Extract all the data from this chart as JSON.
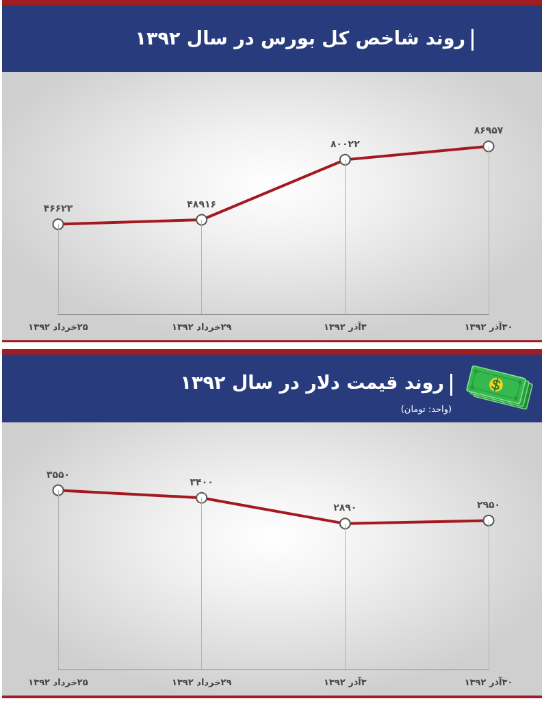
{
  "chart_data": [
    {
      "type": "line",
      "title": "روند شاخص کل بورس در سال ۱۳۹۲",
      "categories": [
        "۲۵خرداد ۱۳۹۲",
        "۲۹خرداد ۱۳۹۲",
        "۳آذر ۱۳۹۲",
        "۳۰آذر ۱۳۹۲"
      ],
      "values": [
        46623,
        48916,
        80022,
        86957
      ],
      "value_labels": [
        "۴۶۶۲۳",
        "۴۸۹۱۶",
        "۸۰۰۲۲",
        "۸۶۹۵۷"
      ],
      "color": "#a3191f",
      "marker": "circle",
      "grid": "x",
      "tick_labels": "x"
    },
    {
      "type": "line",
      "title": "روند قیمت دلار در سال ۱۳۹۲",
      "subtitle": "(واحد: تومان)",
      "categories": [
        "۲۵خرداد ۱۳۹۲",
        "۲۹خرداد ۱۳۹۲",
        "۳آذر ۱۳۹۲",
        "۳۰آذر ۱۳۹۲"
      ],
      "values": [
        3550,
        3400,
        2890,
        2950
      ],
      "value_labels": [
        "۳۵۵۰",
        "۳۴۰۰",
        "۲۸۹۰",
        "۲۹۵۰"
      ],
      "color": "#a3191f",
      "marker": "circle",
      "grid": "x",
      "tick_labels": "x"
    }
  ]
}
